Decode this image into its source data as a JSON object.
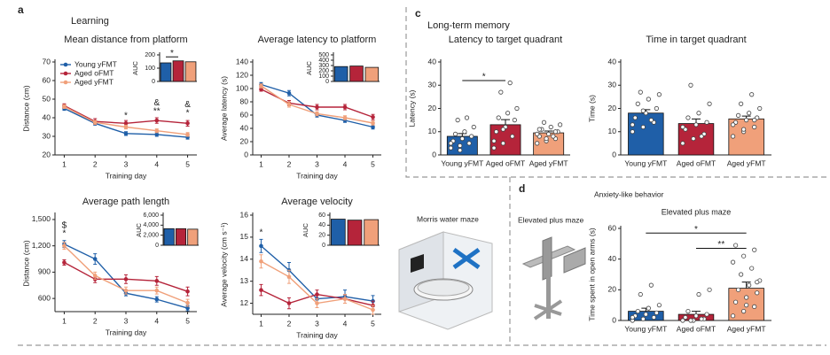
{
  "panels": {
    "a": "a",
    "c": "c",
    "d": "d"
  },
  "headings": {
    "learning": "Learning",
    "memory": "Long-term memory",
    "anxiety": "Anxiety-like behavior",
    "morris": "Morris water maze",
    "epm": "Elevated plus maze"
  },
  "chart_data": [
    {
      "type": "line",
      "title": "Mean distance from platform",
      "xlabel": "Training day",
      "ylabel": "Distance (cm)",
      "x": [
        1,
        2,
        3,
        4,
        5
      ],
      "xlim": [
        0.7,
        5.3
      ],
      "xticks": [
        1,
        2,
        3,
        4,
        5
      ],
      "ylim": [
        20,
        70
      ],
      "yticks": [
        20,
        30,
        40,
        50,
        60,
        70
      ],
      "legend": "upper left",
      "series": [
        {
          "name": "Young yFMT",
          "color": "#1f5fa8",
          "values": [
            45,
            37,
            31.5,
            31,
            29.5
          ],
          "errors": [
            1,
            1,
            1,
            1,
            1
          ]
        },
        {
          "name": "Aged oFMT",
          "color": "#b5243a",
          "values": [
            46.5,
            38,
            37,
            38.5,
            37
          ],
          "errors": [
            1,
            1.5,
            1.5,
            1.5,
            1.5
          ]
        },
        {
          "name": "Aged yFMT",
          "color": "#f0a07a",
          "values": [
            46,
            37.5,
            35,
            33,
            31
          ],
          "errors": [
            1,
            1,
            1,
            1,
            1
          ]
        }
      ],
      "annotations": [
        {
          "text": "*",
          "x": 3,
          "y": 41
        },
        {
          "text": "&",
          "x": 4,
          "y": 48
        },
        {
          "text": "**",
          "x": 4,
          "y": 43.5
        },
        {
          "text": "&",
          "x": 5,
          "y": 47
        },
        {
          "text": "*",
          "x": 5,
          "y": 42.5
        }
      ],
      "inset": {
        "ylabel": "AUC",
        "values": [
          140,
          155,
          148
        ],
        "colors": [
          "#1f5fa8",
          "#b5243a",
          "#f0a07a"
        ],
        "ylim": [
          0,
          200
        ],
        "yticks": [
          0,
          100,
          200
        ],
        "annotations": [
          {
            "text": "*",
            "from": 0,
            "to": 1,
            "y": 185
          }
        ]
      }
    },
    {
      "type": "line",
      "title": "Average latency to platform",
      "xlabel": "Training day",
      "ylabel": "Average latency (s)",
      "x": [
        1,
        2,
        3,
        4,
        5
      ],
      "xlim": [
        0.7,
        5.3
      ],
      "xticks": [
        1,
        2,
        3,
        4,
        5
      ],
      "ylim": [
        0,
        140
      ],
      "yticks": [
        0,
        20,
        40,
        60,
        80,
        100,
        120,
        140
      ],
      "series": [
        {
          "color": "#1f5fa8",
          "values": [
            106,
            93,
            60,
            52,
            42
          ],
          "errors": [
            3,
            4,
            3,
            3,
            3
          ]
        },
        {
          "color": "#b5243a",
          "values": [
            99,
            78,
            72,
            72,
            57
          ],
          "errors": [
            3,
            4,
            4,
            4,
            4
          ]
        },
        {
          "color": "#f0a07a",
          "values": [
            104,
            76,
            62,
            56,
            48
          ],
          "errors": [
            3,
            4,
            3,
            3,
            3
          ]
        }
      ],
      "annotations": [],
      "inset": {
        "ylabel": "AUC",
        "values": [
          280,
          290,
          265
        ],
        "colors": [
          "#1f5fa8",
          "#b5243a",
          "#f0a07a"
        ],
        "ylim": [
          0,
          500
        ],
        "yticks": [
          0,
          100,
          200,
          300,
          400,
          500
        ],
        "annotations": []
      }
    },
    {
      "type": "line",
      "title": "Average path length",
      "xlabel": "Training day",
      "ylabel": "Distance (cm)",
      "x": [
        1,
        2,
        3,
        4,
        5
      ],
      "xlim": [
        0.7,
        5.3
      ],
      "xticks": [
        1,
        2,
        3,
        4,
        5
      ],
      "ylim": [
        450,
        1550
      ],
      "yticks": [
        600,
        900,
        {
          "value": 1200,
          "label": "1,200"
        },
        {
          "value": 1500,
          "label": "1,500"
        }
      ],
      "series": [
        {
          "color": "#1f5fa8",
          "values": [
            1220,
            1050,
            660,
            590,
            490
          ],
          "errors": [
            40,
            60,
            30,
            30,
            30
          ]
        },
        {
          "color": "#b5243a",
          "values": [
            1010,
            820,
            820,
            800,
            680
          ],
          "errors": [
            30,
            40,
            50,
            50,
            50
          ]
        },
        {
          "color": "#f0a07a",
          "values": [
            1200,
            860,
            690,
            690,
            550
          ],
          "errors": [
            40,
            40,
            40,
            40,
            40
          ]
        }
      ],
      "annotations": [
        {
          "text": "$",
          "x": 1,
          "y": 1430
        },
        {
          "text": "*",
          "x": 1,
          "y": 1340
        }
      ],
      "inset": {
        "ylabel": "AUC",
        "values": [
          3300,
          3300,
          3200
        ],
        "colors": [
          "#1f5fa8",
          "#b5243a",
          "#f0a07a"
        ],
        "ylim": [
          0,
          6000
        ],
        "yticks": [
          0,
          {
            "value": 2000,
            "label": "2,000"
          },
          {
            "value": 4000,
            "label": "4,000"
          },
          {
            "value": 6000,
            "label": "6,000"
          }
        ],
        "annotations": []
      }
    },
    {
      "type": "line",
      "title": "Average velocity",
      "xlabel": "Training day",
      "ylabel": "Average velocity (cm s⁻¹)",
      "x": [
        1,
        2,
        3,
        4,
        5
      ],
      "xlim": [
        0.7,
        5.3
      ],
      "xticks": [
        1,
        2,
        3,
        4,
        5
      ],
      "ylim": [
        11.5,
        16
      ],
      "yticks": [
        12,
        13,
        14,
        15,
        16
      ],
      "series": [
        {
          "color": "#1f5fa8",
          "values": [
            14.6,
            13.5,
            12.2,
            12.3,
            12.1
          ],
          "errors": [
            0.3,
            0.35,
            0.2,
            0.3,
            0.25
          ]
        },
        {
          "color": "#b5243a",
          "values": [
            12.6,
            12.0,
            12.4,
            12.2,
            11.9
          ],
          "errors": [
            0.25,
            0.25,
            0.2,
            0.2,
            0.2
          ]
        },
        {
          "color": "#f0a07a",
          "values": [
            13.9,
            13.2,
            12.0,
            12.2,
            11.7
          ],
          "errors": [
            0.3,
            0.3,
            0.2,
            0.2,
            0.2
          ]
        }
      ],
      "annotations": [
        {
          "text": "*",
          "x": 1,
          "y": 15.2
        }
      ],
      "inset": {
        "ylabel": "AUC",
        "values": [
          52,
          50,
          51
        ],
        "colors": [
          "#1f5fa8",
          "#b5243a",
          "#f0a07a"
        ],
        "ylim": [
          0,
          60
        ],
        "yticks": [
          0,
          20,
          40,
          60
        ],
        "annotations": []
      }
    },
    {
      "type": "bar",
      "title": "Latency to target quadrant",
      "ylabel": "Latency (s)",
      "categories": [
        "Young yFMT",
        "Aged oFMT",
        "Aged yFMT"
      ],
      "colors": [
        "#1f5fa8",
        "#b5243a",
        "#f0a07a"
      ],
      "values": [
        8,
        13,
        9.5
      ],
      "errors": [
        1.2,
        2.2,
        0.8
      ],
      "ylim": [
        0,
        40
      ],
      "yticks": [
        0,
        10,
        20,
        30,
        40
      ],
      "points": [
        [
          3,
          4,
          5,
          6,
          7,
          8,
          9,
          10,
          12,
          15,
          16,
          5,
          2
        ],
        [
          3,
          5,
          8,
          10,
          12,
          15,
          16,
          18,
          20,
          27,
          31,
          6,
          11
        ],
        [
          5,
          6,
          7,
          8,
          9,
          10,
          11,
          12,
          13,
          14,
          8,
          9,
          7,
          10,
          11
        ]
      ],
      "annotations": [
        {
          "text": "*",
          "from": 0,
          "to": 1,
          "y": 32
        }
      ]
    },
    {
      "type": "bar",
      "title": "Time in target quadrant",
      "ylabel": "Time (s)",
      "categories": [
        "Young yFMT",
        "Aged oFMT",
        "Aged yFMT"
      ],
      "colors": [
        "#1f5fa8",
        "#b5243a",
        "#f0a07a"
      ],
      "values": [
        18,
        13.5,
        15.5
      ],
      "errors": [
        1.5,
        2,
        1.2
      ],
      "ylim": [
        0,
        40
      ],
      "yticks": [
        0,
        10,
        20,
        30,
        40
      ],
      "points": [
        [
          10,
          12,
          14,
          16,
          18,
          20,
          22,
          24,
          26,
          27,
          15,
          13,
          19
        ],
        [
          5,
          7,
          9,
          11,
          13,
          14,
          16,
          18,
          22,
          30,
          8,
          12
        ],
        [
          8,
          10,
          12,
          14,
          15,
          16,
          17,
          18,
          20,
          22,
          26,
          13,
          11,
          15
        ]
      ],
      "annotations": []
    },
    {
      "type": "bar",
      "title": "Elevated plus maze",
      "ylabel": "Time spent in open arms (s)",
      "categories": [
        "Young yFMT",
        "Aged oFMT",
        "Aged yFMT"
      ],
      "colors": [
        "#1f5fa8",
        "#b5243a",
        "#f0a07a"
      ],
      "values": [
        6,
        4,
        21
      ],
      "errors": [
        2,
        2,
        4
      ],
      "ylim": [
        0,
        60
      ],
      "yticks": [
        0,
        20,
        40,
        60
      ],
      "points": [
        [
          0,
          1,
          2,
          3,
          4,
          5,
          6,
          8,
          10,
          17,
          23,
          2
        ],
        [
          0,
          0,
          1,
          2,
          3,
          4,
          6,
          17,
          20,
          0,
          1
        ],
        [
          3,
          6,
          9,
          12,
          15,
          18,
          20,
          23,
          26,
          30,
          34,
          38,
          42,
          46,
          49,
          10,
          25
        ]
      ],
      "annotations": [
        {
          "text": "*",
          "from": 0,
          "to": 2,
          "y": 57
        },
        {
          "text": "**",
          "from": 1,
          "to": 2,
          "y": 47
        }
      ]
    }
  ]
}
